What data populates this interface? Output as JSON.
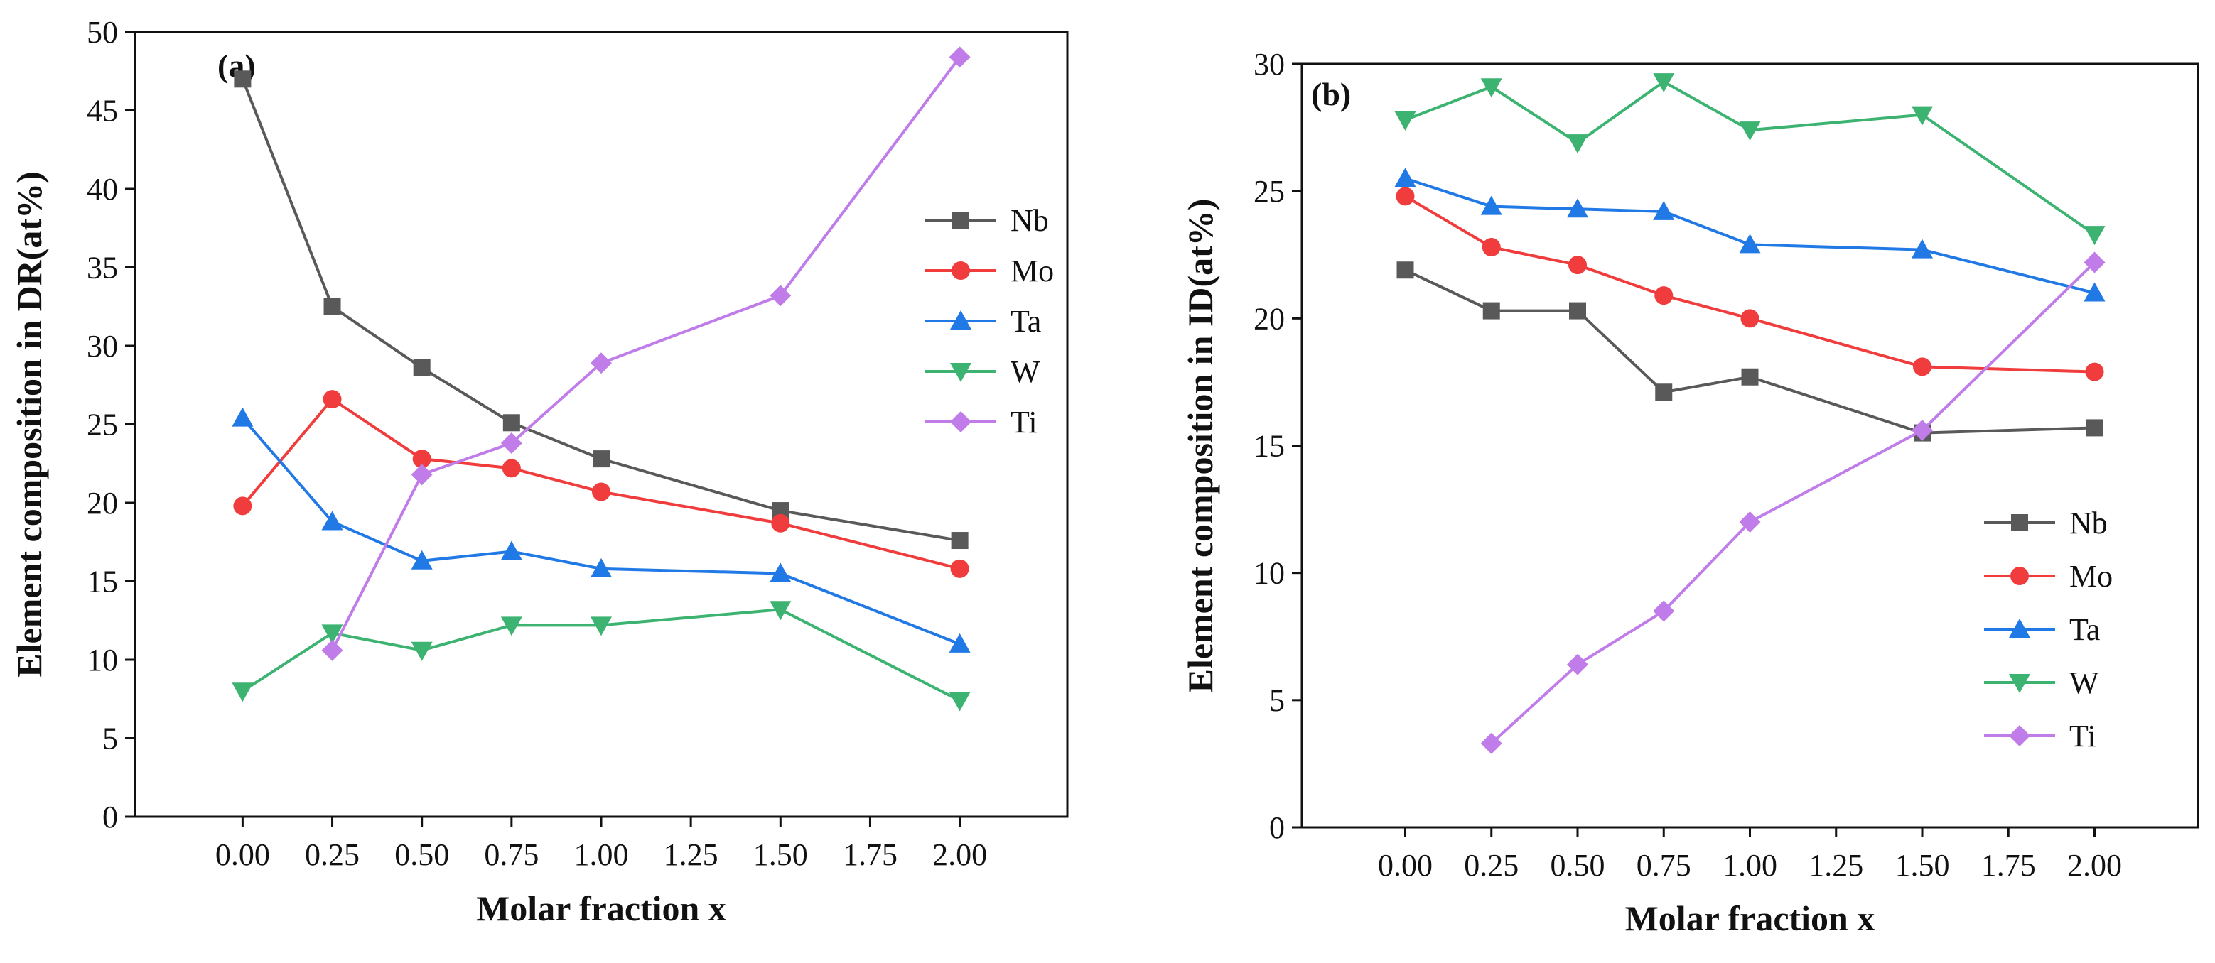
{
  "chart_data": [
    {
      "type": "line",
      "panel_label": "(a)",
      "title": "",
      "xlabel": "Molar fraction x",
      "ylabel": "Element composition in DR(at%)",
      "xlim": [
        -0.3,
        2.3
      ],
      "ylim": [
        0,
        50
      ],
      "x_ticks": [
        "0.00",
        "0.25",
        "0.50",
        "0.75",
        "1.00",
        "1.25",
        "1.50",
        "1.75",
        "2.00"
      ],
      "y_ticks": [
        "0",
        "5",
        "10",
        "15",
        "20",
        "25",
        "30",
        "35",
        "40",
        "45",
        "50"
      ],
      "legend_position": "right-middle",
      "series": [
        {
          "name": "Nb",
          "color": "#595959",
          "marker": "square",
          "x": [
            0.0,
            0.25,
            0.5,
            0.75,
            1.0,
            1.5,
            2.0
          ],
          "values": [
            47.0,
            32.5,
            28.6,
            25.1,
            22.8,
            19.5,
            17.6
          ]
        },
        {
          "name": "Mo",
          "color": "#f03c3c",
          "marker": "circle",
          "x": [
            0.0,
            0.25,
            0.5,
            0.75,
            1.0,
            1.5,
            2.0
          ],
          "values": [
            19.8,
            26.6,
            22.8,
            22.2,
            20.7,
            18.7,
            15.8
          ]
        },
        {
          "name": "Ta",
          "color": "#2179e6",
          "marker": "triangle-up",
          "x": [
            0.0,
            0.25,
            0.5,
            0.75,
            1.0,
            1.5,
            2.0
          ],
          "values": [
            25.4,
            18.8,
            16.3,
            16.9,
            15.8,
            15.5,
            11.0
          ]
        },
        {
          "name": "W",
          "color": "#3cb371",
          "marker": "triangle-down",
          "x": [
            0.0,
            0.25,
            0.5,
            0.75,
            1.0,
            1.5,
            2.0
          ],
          "values": [
            8.0,
            11.7,
            10.6,
            12.2,
            12.2,
            13.2,
            7.4
          ]
        },
        {
          "name": "Ti",
          "color": "#c07ce8",
          "marker": "diamond",
          "x": [
            0.25,
            0.5,
            0.75,
            1.0,
            1.5,
            2.0
          ],
          "values": [
            10.6,
            21.8,
            23.8,
            28.9,
            33.2,
            48.4
          ]
        }
      ]
    },
    {
      "type": "line",
      "panel_label": "(b)",
      "title": "",
      "xlabel": "Molar fraction x",
      "ylabel": "Element composition in ID(at%)",
      "xlim": [
        -0.3,
        2.3
      ],
      "ylim": [
        0,
        30
      ],
      "x_ticks": [
        "0.00",
        "0.25",
        "0.50",
        "0.75",
        "1.00",
        "1.25",
        "1.50",
        "1.75",
        "2.00"
      ],
      "y_ticks": [
        "0",
        "5",
        "10",
        "15",
        "20",
        "25",
        "30"
      ],
      "legend_position": "bottom-right",
      "series": [
        {
          "name": "Nb",
          "color": "#595959",
          "marker": "square",
          "x": [
            0.0,
            0.25,
            0.5,
            0.75,
            1.0,
            1.5,
            2.0
          ],
          "values": [
            21.9,
            20.3,
            20.3,
            17.1,
            17.7,
            15.5,
            15.7
          ]
        },
        {
          "name": "Mo",
          "color": "#f03c3c",
          "marker": "circle",
          "x": [
            0.0,
            0.25,
            0.5,
            0.75,
            1.0,
            1.5,
            2.0
          ],
          "values": [
            24.8,
            22.8,
            22.1,
            20.9,
            20.0,
            18.1,
            17.9
          ]
        },
        {
          "name": "Ta",
          "color": "#2179e6",
          "marker": "triangle-up",
          "x": [
            0.0,
            0.25,
            0.5,
            0.75,
            1.0,
            1.5,
            2.0
          ],
          "values": [
            25.5,
            24.4,
            24.3,
            24.2,
            22.9,
            22.7,
            21.0
          ]
        },
        {
          "name": "W",
          "color": "#3cb371",
          "marker": "triangle-down",
          "x": [
            0.0,
            0.25,
            0.5,
            0.75,
            1.0,
            1.5,
            2.0
          ],
          "values": [
            27.8,
            29.1,
            26.9,
            29.3,
            27.4,
            28.0,
            23.3
          ]
        },
        {
          "name": "Ti",
          "color": "#c07ce8",
          "marker": "diamond",
          "x": [
            0.25,
            0.5,
            0.75,
            1.0,
            1.5,
            2.0
          ],
          "values": [
            3.3,
            6.4,
            8.5,
            12.0,
            15.6,
            22.2
          ]
        }
      ]
    }
  ]
}
